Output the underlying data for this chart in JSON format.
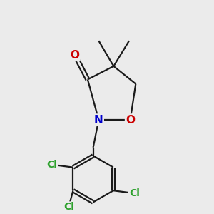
{
  "bg_color": "#ebebeb",
  "bond_color": "#1a1a1a",
  "bond_width": 1.6,
  "cl_color": "#2ca02c",
  "n_color": "#0000cc",
  "o_color": "#cc0000",
  "c_color": "#1a1a1a",
  "figsize": [
    3.0,
    3.0
  ],
  "dpi": 100,
  "xlim": [
    -1.2,
    1.8
  ],
  "ylim": [
    -2.2,
    1.6
  ]
}
